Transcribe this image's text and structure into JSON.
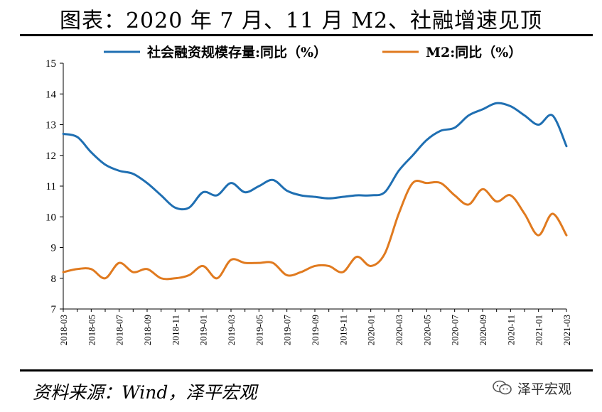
{
  "title": "图表：2020 年 7 月、11 月 M2、社融增速见顶",
  "source": "资料来源：Wind，泽平宏观",
  "watermark": {
    "text": "泽平宏观",
    "icon": "wechat-icon"
  },
  "colors": {
    "series1": "#1f6fb2",
    "series2": "#e07a1f",
    "axis": "#000000"
  },
  "chart_data": {
    "type": "line",
    "title": "图表：2020 年 7 月、11 月 M2、社融增速见顶",
    "xlabel": "",
    "ylabel": "",
    "ylim": [
      7,
      15
    ],
    "yticks": [
      7,
      8,
      9,
      10,
      11,
      12,
      13,
      14,
      15
    ],
    "grid": false,
    "legend_position": "top",
    "x": [
      "2018-03",
      "2018-04",
      "2018-05",
      "2018-06",
      "2018-07",
      "2018-08",
      "2018-09",
      "2018-10",
      "2018-11",
      "2018-12",
      "2019-01",
      "2019-02",
      "2019-03",
      "2019-04",
      "2019-05",
      "2019-06",
      "2019-07",
      "2019-08",
      "2019-09",
      "2019-10",
      "2019-11",
      "2019-12",
      "2020-01",
      "2020-02",
      "2020-03",
      "2020-04",
      "2020-05",
      "2020-06",
      "2020-07",
      "2020-08",
      "2020-09",
      "2020-10",
      "2020-11",
      "2020-12",
      "2021-01",
      "2021-02",
      "2021-03"
    ],
    "xtick_labels": [
      "2018-03",
      "2018-05",
      "2018-07",
      "2018-09",
      "2018-11",
      "2019-01",
      "2019-03",
      "2019-05",
      "2019-07",
      "2019-09",
      "2019-11",
      "2020-01",
      "2020-03",
      "2020-05",
      "2020-07",
      "2020-09",
      "2020-11",
      "2021-01",
      "2021-03"
    ],
    "series": [
      {
        "name": "社会融资规模存量:同比（%）",
        "color": "#1f6fb2",
        "values": [
          12.7,
          12.6,
          12.1,
          11.7,
          11.5,
          11.4,
          11.1,
          10.7,
          10.3,
          10.3,
          10.8,
          10.7,
          11.1,
          10.8,
          11.0,
          11.2,
          10.85,
          10.7,
          10.65,
          10.6,
          10.65,
          10.7,
          10.7,
          10.8,
          11.5,
          12.0,
          12.5,
          12.8,
          12.9,
          13.3,
          13.5,
          13.7,
          13.6,
          13.3,
          13.0,
          13.3,
          12.3
        ]
      },
      {
        "name": "M2:同比（%）",
        "color": "#e07a1f",
        "values": [
          8.2,
          8.3,
          8.3,
          8.0,
          8.5,
          8.2,
          8.3,
          8.0,
          8.0,
          8.1,
          8.4,
          8.0,
          8.6,
          8.5,
          8.5,
          8.5,
          8.1,
          8.2,
          8.4,
          8.4,
          8.2,
          8.7,
          8.4,
          8.8,
          10.1,
          11.1,
          11.1,
          11.1,
          10.7,
          10.4,
          10.9,
          10.5,
          10.7,
          10.1,
          9.4,
          10.1,
          9.4
        ]
      }
    ]
  }
}
